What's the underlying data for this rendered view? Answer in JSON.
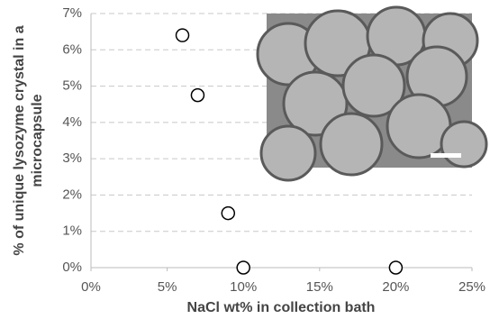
{
  "chart_data": {
    "type": "scatter",
    "xlabel": "NaCl wt% in collection bath",
    "ylabel": [
      "% of unique lysozyme crystal in a",
      "microcapsule"
    ],
    "series": [
      {
        "color": "#000000",
        "x": [
          6,
          7,
          9,
          10,
          20
        ],
        "values": [
          6.4,
          4.75,
          1.5,
          0,
          0
        ]
      }
    ],
    "xlim": [
      0,
      25
    ],
    "xticks": [
      {
        "value": 0,
        "label": "0%"
      },
      {
        "value": 5,
        "label": "5%"
      },
      {
        "value": 10,
        "label": "10%"
      },
      {
        "value": 15,
        "label": "15%"
      },
      {
        "value": 20,
        "label": "20%"
      },
      {
        "value": 25,
        "label": "25%"
      }
    ],
    "ylim": [
      0,
      7
    ],
    "yticks": [
      {
        "value": 0,
        "label": "0%"
      },
      {
        "value": 1,
        "label": "1%"
      },
      {
        "value": 2,
        "label": "2%"
      },
      {
        "value": 3,
        "label": "3%"
      },
      {
        "value": 4,
        "label": "4%"
      },
      {
        "value": 5,
        "label": "5%"
      },
      {
        "value": 6,
        "label": "6%"
      },
      {
        "value": 7,
        "label": "7%"
      }
    ],
    "grid": true
  }
}
